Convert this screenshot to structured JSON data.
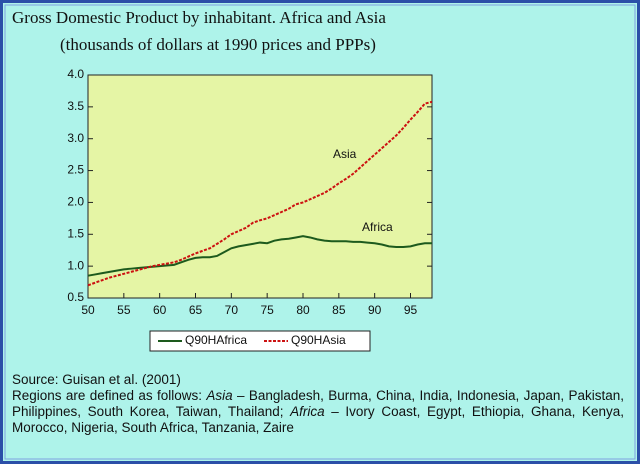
{
  "chart_data": {
    "type": "line",
    "title": "Gross Domestic Product by inhabitant. Africa and Asia",
    "subtitle": "(thousands of dollars at 1990 prices and PPPs)",
    "annotations": [
      "Asia",
      "Africa"
    ],
    "x": [
      50,
      51,
      52,
      53,
      54,
      55,
      56,
      57,
      58,
      59,
      60,
      61,
      62,
      63,
      64,
      65,
      66,
      67,
      68,
      69,
      70,
      71,
      72,
      73,
      74,
      75,
      76,
      77,
      78,
      79,
      80,
      81,
      82,
      83,
      84,
      85,
      86,
      87,
      88,
      89,
      90,
      91,
      92,
      93,
      94,
      95,
      96,
      97,
      98
    ],
    "series": [
      {
        "name": "Q90HAfrica",
        "color": "#1d5a1d",
        "dashed": false,
        "values": [
          0.85,
          0.87,
          0.89,
          0.91,
          0.93,
          0.95,
          0.96,
          0.97,
          0.98,
          0.99,
          1.0,
          1.01,
          1.02,
          1.06,
          1.1,
          1.13,
          1.14,
          1.14,
          1.16,
          1.22,
          1.28,
          1.31,
          1.33,
          1.35,
          1.37,
          1.36,
          1.4,
          1.42,
          1.43,
          1.45,
          1.47,
          1.45,
          1.42,
          1.4,
          1.39,
          1.39,
          1.39,
          1.38,
          1.38,
          1.37,
          1.36,
          1.34,
          1.31,
          1.3,
          1.3,
          1.31,
          1.34,
          1.36,
          1.36
        ]
      },
      {
        "name": "Q90HAsia",
        "color": "#cc1111",
        "dashed": true,
        "values": [
          0.7,
          0.74,
          0.78,
          0.82,
          0.85,
          0.88,
          0.91,
          0.94,
          0.97,
          1.0,
          1.02,
          1.04,
          1.06,
          1.1,
          1.15,
          1.2,
          1.24,
          1.28,
          1.35,
          1.42,
          1.5,
          1.55,
          1.6,
          1.68,
          1.72,
          1.75,
          1.8,
          1.85,
          1.9,
          1.97,
          2.0,
          2.05,
          2.1,
          2.15,
          2.22,
          2.3,
          2.37,
          2.45,
          2.55,
          2.65,
          2.75,
          2.85,
          2.95,
          3.05,
          3.17,
          3.3,
          3.42,
          3.55,
          3.58
        ]
      }
    ],
    "xlim": [
      50,
      98
    ],
    "xticks": [
      50,
      55,
      60,
      65,
      70,
      75,
      80,
      85,
      90,
      95
    ],
    "ylim": [
      0.5,
      4.0
    ],
    "yticks": [
      0.5,
      {
        "value": 1,
        "label": "1.0"
      },
      1.5,
      {
        "value": 2,
        "label": "2.0"
      },
      2.5,
      {
        "value": 3,
        "label": "3.0"
      },
      3.5,
      {
        "value": 4,
        "label": "4.0"
      }
    ],
    "grid": false,
    "legend": "bottom",
    "source": "Source: Guisan et al. (2001)",
    "note": [
      "Regions are defined as follows: ",
      "Asia",
      " – Bangladesh, Burma, China, India, Indonesia, Japan, Pakistan, Philippines, South Korea, Taiwan, Thailand; ",
      "Africa",
      " – Ivory Coast, Egypt, Ethiopia, Ghana, Kenya, Morocco, Nigeria, South Africa, Tanzania, Zaire"
    ]
  }
}
